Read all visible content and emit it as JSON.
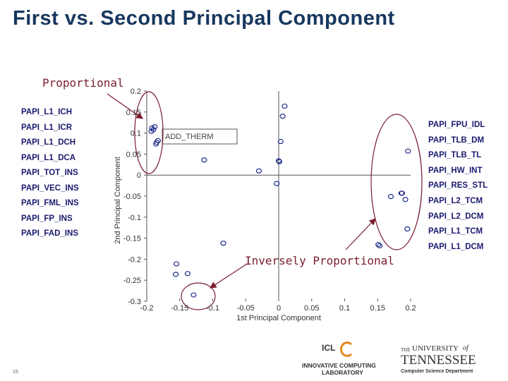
{
  "title": "First vs. Second Principal Component",
  "page_number": "15",
  "left_labels": [
    "PAPI_L1_ICH",
    "PAPI_L1_ICR",
    "PAPI_L1_DCH",
    "PAPI_L1_DCA",
    "PAPI_TOT_INS",
    "PAPI_VEC_INS",
    "PAPI_FML_INS",
    "PAPI_FP_INS",
    "PAPI_FAD_INS"
  ],
  "right_labels": [
    "PAPI_FPU_IDL",
    "PAPI_TLB_DM",
    "PAPI_TLB_TL",
    "PAPI_HW_INT",
    "PAPI_RES_STL",
    "PAPI_L2_TCM",
    "PAPI_L2_DCM",
    "PAPI_L1_TCM",
    "PAPI_L1_DCM"
  ],
  "annotations": {
    "proportional": "Proportional",
    "inversely": "Inversely Proportional"
  },
  "logos": {
    "icl_top": "ICL",
    "icl_line1": "INNOVATIVE COMPUTING",
    "icl_line2": "LABORATORY",
    "ut_the": "THE",
    "ut_university": "UNIVERSITY",
    "ut_of": "of",
    "ut_tennessee": "TENNESSEE",
    "ut_dept": "Computer Science Department"
  },
  "colors": {
    "title": "#17375e",
    "marker": "#1f2a8c",
    "annotation": "#7a1e2e",
    "label": "#1a1a6e"
  },
  "chart_data": {
    "type": "scatter",
    "xlabel": "1st Principal Component",
    "ylabel": "2nd Principal Component",
    "xlim": [
      -0.2,
      0.2
    ],
    "ylim": [
      -0.3,
      0.2
    ],
    "xticks": [
      "-0.2",
      "-0.15",
      "-0.1",
      "-0.05",
      "0",
      "0.05",
      "0.1",
      "0.15",
      "0.2"
    ],
    "yticks": [
      "0.2",
      "0.15",
      "0.1",
      "0.05",
      "0",
      "-0.05",
      "-0.1",
      "-0.15",
      "-0.2",
      "-0.25",
      "-0.3"
    ],
    "legend_text": "ADD_THERM",
    "points": [
      {
        "x": -0.192,
        "y": 0.112
      },
      {
        "x": -0.19,
        "y": 0.108
      },
      {
        "x": -0.193,
        "y": 0.104
      },
      {
        "x": -0.188,
        "y": 0.115
      },
      {
        "x": -0.183,
        "y": 0.082
      },
      {
        "x": -0.185,
        "y": 0.078
      },
      {
        "x": -0.186,
        "y": 0.074
      },
      {
        "x": 0.009,
        "y": 0.164
      },
      {
        "x": 0.006,
        "y": 0.14
      },
      {
        "x": 0.003,
        "y": 0.08
      },
      {
        "x": 0.0,
        "y": 0.034
      },
      {
        "x": 0.001,
        "y": 0.032
      },
      {
        "x": -0.113,
        "y": 0.036
      },
      {
        "x": -0.03,
        "y": 0.01
      },
      {
        "x": -0.003,
        "y": -0.02
      },
      {
        "x": -0.084,
        "y": -0.162
      },
      {
        "x": -0.155,
        "y": -0.211
      },
      {
        "x": -0.156,
        "y": -0.236
      },
      {
        "x": -0.138,
        "y": -0.234
      },
      {
        "x": -0.129,
        "y": -0.285
      },
      {
        "x": 0.196,
        "y": 0.057
      },
      {
        "x": 0.17,
        "y": -0.051
      },
      {
        "x": 0.186,
        "y": -0.043
      },
      {
        "x": 0.187,
        "y": -0.043
      },
      {
        "x": 0.192,
        "y": -0.058
      },
      {
        "x": 0.195,
        "y": -0.128
      },
      {
        "x": 0.151,
        "y": -0.165
      },
      {
        "x": 0.153,
        "y": -0.168
      }
    ]
  }
}
